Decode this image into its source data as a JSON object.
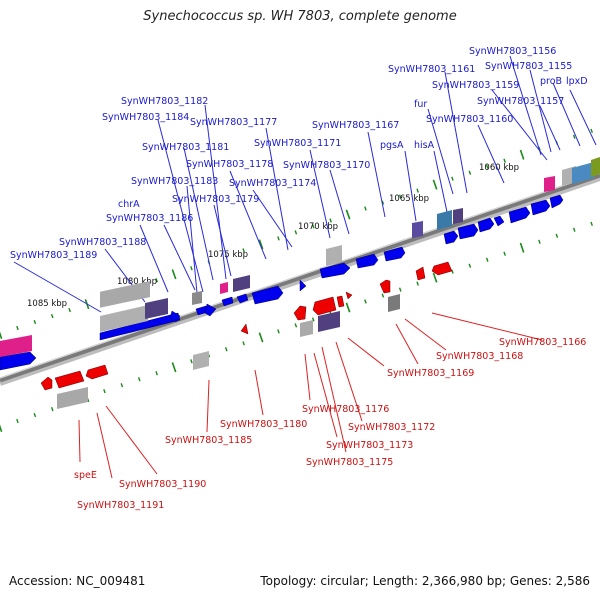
{
  "title": "Synechococcus sp. WH 7803, complete genome",
  "footer": {
    "accession": "Accession: NC_009481",
    "summary": "Topology: circular; Length: 2,366,980 bp; Genes: 2,586"
  },
  "colors": {
    "forward_gene": "#0000ee",
    "reverse_gene": "#ee0000",
    "forward_label": "#1a1acc",
    "reverse_label": "#cc1111",
    "backbone": "#808080",
    "tick": "#1a8a1a",
    "rna_magenta": "#e0208a",
    "rna_gray": "#9a9a9a",
    "purple_block": "#504080",
    "teal_block": "#3a7aa8",
    "olive_block": "#7a9a20"
  },
  "scale_labels": [
    "1085 kbp",
    "1080 kbp",
    "1075 kbp",
    "1070 kbp",
    "1065 kbp",
    "1060 kbp"
  ],
  "forward_labels": [
    "SynWH7803_1156",
    "SynWH7803_1155",
    "proB",
    "lpxD",
    "SynWH7803_1161",
    "SynWH7803_1159",
    "SynWH7803_1157",
    "fur",
    "SynWH7803_1160",
    "SynWH7803_1182",
    "SynWH7803_1184",
    "SynWH7803_1177",
    "SynWH7803_1167",
    "SynWH7803_1181",
    "SynWH7803_1171",
    "pgsA",
    "hisA",
    "SynWH7803_1178",
    "SynWH7803_1170",
    "SynWH7803_1183",
    "SynWH7803_1174",
    "SynWH7803_1179",
    "chrA",
    "SynWH7803_1186",
    "SynWH7803_1188",
    "SynWH7803_1189"
  ],
  "reverse_labels": [
    "SynWH7803_1166",
    "SynWH7803_1168",
    "SynWH7803_1169",
    "SynWH7803_1176",
    "SynWH7803_1172",
    "SynWH7803_1180",
    "SynWH7803_1185",
    "SynWH7803_1173",
    "SynWH7803_1175",
    "speE",
    "SynWH7803_1190",
    "SynWH7803_1191"
  ]
}
